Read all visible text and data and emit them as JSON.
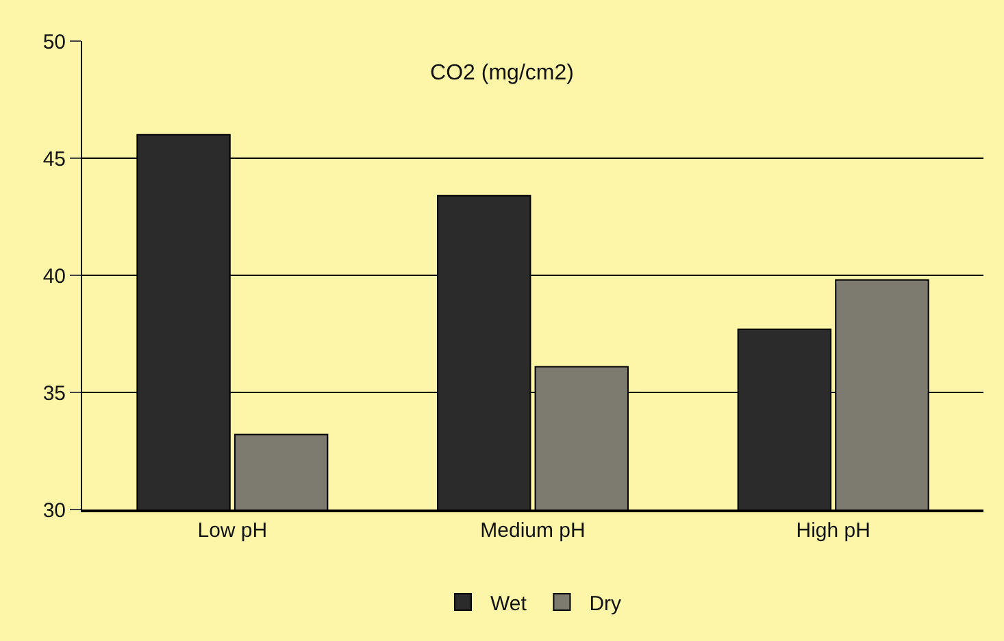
{
  "chart_data": {
    "type": "bar",
    "title": "CO2 (mg/cm2)",
    "categories": [
      "Low pH",
      "Medium pH",
      "High pH"
    ],
    "series": [
      {
        "name": "Wet",
        "color": "#2b2b2b",
        "values": [
          46.0,
          43.4,
          37.7
        ]
      },
      {
        "name": "Dry",
        "color": "#7d7b70",
        "values": [
          33.2,
          36.1,
          39.8
        ]
      }
    ],
    "ylim": [
      30,
      50
    ],
    "yticks": [
      30,
      35,
      40,
      45,
      50
    ],
    "grid": "y",
    "legend": "bottom"
  }
}
